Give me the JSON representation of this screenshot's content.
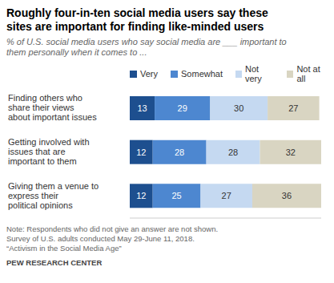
{
  "chart_data": {
    "type": "bar",
    "orientation": "horizontal",
    "stacked": true,
    "data_labels": true,
    "tick_labels": "y",
    "legend": "top",
    "title": "Roughly four-in-ten social media users say these sites are important for finding like-minded users",
    "subtitle": "% of U.S. social media users who say social media are ___ important to them personally when it comes to ...",
    "categories": [
      "Finding others who share their views about important issues",
      "Getting involved with issues that are important to them",
      "Giving them a venue to express their political opinions"
    ],
    "series": [
      {
        "name": "Very",
        "color": "#1d4f8f",
        "values": [
          13,
          12,
          12
        ]
      },
      {
        "name": "Somewhat",
        "color": "#4d87d0",
        "values": [
          29,
          28,
          25
        ]
      },
      {
        "name": "Not very",
        "color": "#c5d9f1",
        "values": [
          30,
          28,
          27
        ]
      },
      {
        "name": "Not at all",
        "color": "#d9d5c2",
        "values": [
          27,
          32,
          36
        ]
      }
    ],
    "xlim": [
      0,
      100
    ],
    "notes": [
      "Note: Respondents who did not give an answer are not shown.",
      "Survey of U.S. adults conducted May 29-June 11, 2018.",
      "“Activism in the Social Media Age”"
    ],
    "source": "PEW RESEARCH CENTER"
  }
}
